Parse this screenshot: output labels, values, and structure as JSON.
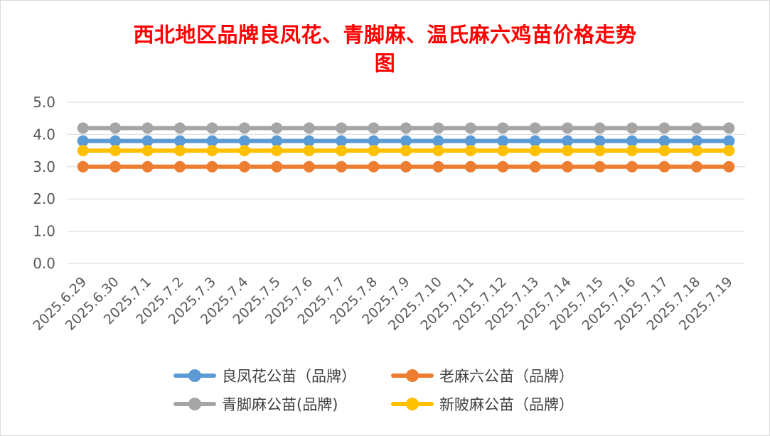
{
  "chart_data": {
    "type": "line",
    "title_lines": [
      "西北地区品牌良凤花、青脚麻、温氏麻六鸡苗价格走势",
      "图"
    ],
    "categories": [
      "2025.6.29",
      "2025.6.30",
      "2025.7.1",
      "2025.7.2",
      "2025.7.3",
      "2025.7.4",
      "2025.7.5",
      "2025.7.6",
      "2025.7.7",
      "2025.7.8",
      "2025.7.9",
      "2025.7.10",
      "2025.7.11",
      "2025.7.12",
      "2025.7.13",
      "2025.7.14",
      "2025.7.15",
      "2025.7.16",
      "2025.7.17",
      "2025.7.18",
      "2025.7.19"
    ],
    "y_ticks": [
      "0.0",
      "1.0",
      "2.0",
      "3.0",
      "4.0",
      "5.0"
    ],
    "ylim": [
      0,
      5
    ],
    "grid": true,
    "legend_position": "bottom",
    "series": [
      {
        "name": "良凤花公苗（品牌）",
        "color": "#5b9bd5",
        "values": [
          3.8,
          3.8,
          3.8,
          3.8,
          3.8,
          3.8,
          3.8,
          3.8,
          3.8,
          3.8,
          3.8,
          3.8,
          3.8,
          3.8,
          3.8,
          3.8,
          3.8,
          3.8,
          3.8,
          3.8,
          3.8
        ]
      },
      {
        "name": "老麻六公苗（品牌）",
        "color": "#ed7d31",
        "values": [
          3.0,
          3.0,
          3.0,
          3.0,
          3.0,
          3.0,
          3.0,
          3.0,
          3.0,
          3.0,
          3.0,
          3.0,
          3.0,
          3.0,
          3.0,
          3.0,
          3.0,
          3.0,
          3.0,
          3.0,
          3.0
        ]
      },
      {
        "name": "青脚麻公苗(品牌)",
        "color": "#a5a5a5",
        "values": [
          4.2,
          4.2,
          4.2,
          4.2,
          4.2,
          4.2,
          4.2,
          4.2,
          4.2,
          4.2,
          4.2,
          4.2,
          4.2,
          4.2,
          4.2,
          4.2,
          4.2,
          4.2,
          4.2,
          4.2,
          4.2
        ]
      },
      {
        "name": "新陂麻公苗（品牌）",
        "color": "#ffc000",
        "values": [
          3.5,
          3.5,
          3.5,
          3.5,
          3.5,
          3.5,
          3.5,
          3.5,
          3.5,
          3.5,
          3.5,
          3.5,
          3.5,
          3.5,
          3.5,
          3.5,
          3.5,
          3.5,
          3.5,
          3.5,
          3.5
        ]
      }
    ]
  }
}
